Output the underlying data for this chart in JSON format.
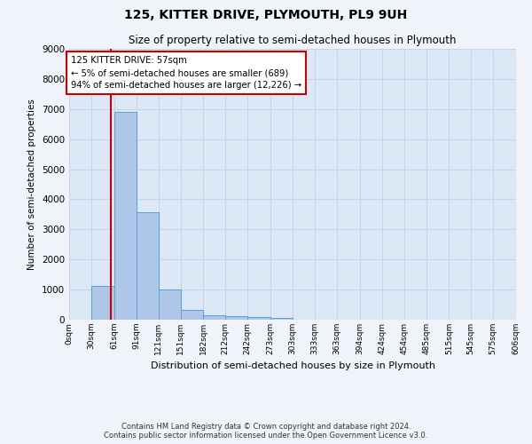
{
  "title": "125, KITTER DRIVE, PLYMOUTH, PL9 9UH",
  "subtitle": "Size of property relative to semi-detached houses in Plymouth",
  "xlabel": "Distribution of semi-detached houses by size in Plymouth",
  "ylabel": "Number of semi-detached properties",
  "bar_edges": [
    0,
    30,
    61,
    91,
    121,
    151,
    182,
    212,
    242,
    273,
    303,
    333,
    363,
    394,
    424,
    454,
    485,
    515,
    545,
    575,
    606
  ],
  "bar_heights": [
    0,
    1120,
    6900,
    3560,
    1000,
    330,
    140,
    130,
    90,
    60,
    0,
    0,
    0,
    0,
    0,
    0,
    0,
    0,
    0,
    0
  ],
  "bar_color": "#aec6e8",
  "bar_edge_color": "#5a9fd4",
  "property_size": 57,
  "property_line_color": "#cc0000",
  "annotation_text": "125 KITTER DRIVE: 57sqm\n← 5% of semi-detached houses are smaller (689)\n94% of semi-detached houses are larger (12,226) →",
  "annotation_box_color": "#ffffff",
  "annotation_box_edge_color": "#cc0000",
  "ylim": [
    0,
    9000
  ],
  "yticks": [
    0,
    1000,
    2000,
    3000,
    4000,
    5000,
    6000,
    7000,
    8000,
    9000
  ],
  "grid_color": "#c8d4e8",
  "bg_color": "#dce8f5",
  "fig_bg_color": "#f0f4fa",
  "footer_line1": "Contains HM Land Registry data © Crown copyright and database right 2024.",
  "footer_line2": "Contains public sector information licensed under the Open Government Licence v3.0."
}
